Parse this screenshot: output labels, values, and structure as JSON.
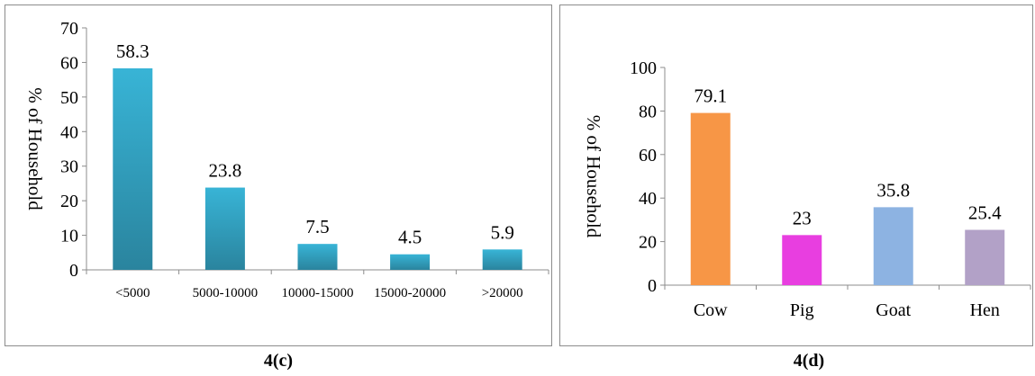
{
  "chart_data": [
    {
      "type": "bar",
      "caption": "4(c)",
      "ylabel": "% of Household",
      "categories": [
        "<5000",
        "5000-10000",
        "10000-15000",
        "15000-20000",
        ">20000"
      ],
      "values": [
        58.3,
        23.8,
        7.5,
        4.5,
        5.9
      ],
      "data_labels": [
        "58.3",
        "23.8",
        "7.5",
        "4.5",
        "5.9"
      ],
      "ylim": [
        0,
        70
      ],
      "yticks": [
        0,
        10,
        20,
        30,
        40,
        50,
        60,
        70
      ],
      "grid": false,
      "bar_colors": [
        "#38b4d6",
        "#38b4d6",
        "#38b4d6",
        "#38b4d6",
        "#38b4d6"
      ],
      "bar_gradient_to": "#2a849e"
    },
    {
      "type": "bar",
      "caption": "4(d)",
      "ylabel": "% of Household",
      "categories": [
        "Cow",
        "Pig",
        "Goat",
        "Hen"
      ],
      "values": [
        79.1,
        23,
        35.8,
        25.4
      ],
      "data_labels": [
        "79.1",
        "23",
        "35.8",
        "25.4"
      ],
      "ylim": [
        0,
        100
      ],
      "yticks": [
        0,
        20,
        40,
        60,
        80,
        100
      ],
      "grid": false,
      "bar_colors": [
        "#f79646",
        "#e83ee0",
        "#8db3e2",
        "#b2a1c7"
      ]
    }
  ]
}
